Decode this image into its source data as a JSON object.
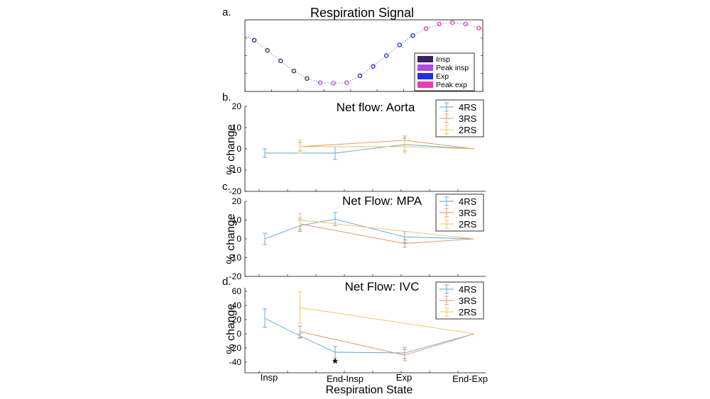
{
  "figure": {
    "x_axis_title": "Respiration State"
  },
  "x_categories": [
    "Insp",
    "End-Insp",
    "Exp",
    "End-Exp"
  ],
  "colors": {
    "rs4": "#5aa7d6",
    "rs3": "#e0936a",
    "rs2": "#f2c35a",
    "insp": "#3b1f5e",
    "peak_insp": "#b14be0",
    "exp": "#1f2fe0",
    "peak_exp": "#e83bb8",
    "signal_line": "#7f8fa6"
  },
  "chart_data": [
    {
      "id": "a",
      "panel_label": "a.",
      "type": "line",
      "title": "Respiration Signal",
      "xlabel": "",
      "ylabel": "",
      "xlim": [
        0,
        18
      ],
      "ylim": [
        -1.3,
        1.3
      ],
      "signal": {
        "x": [
          0.7,
          1.7,
          2.7,
          3.7,
          4.7,
          5.7,
          6.7,
          7.7,
          8.7,
          9.7,
          10.7,
          11.7,
          12.7,
          13.7,
          14.7,
          15.7,
          16.7,
          17.7
        ],
        "y": [
          0.56,
          0.19,
          -0.19,
          -0.56,
          -0.83,
          -0.98,
          -1.0,
          -0.98,
          -0.73,
          -0.39,
          0.0,
          0.39,
          0.73,
          0.98,
          1.15,
          1.2,
          1.15,
          1.0
        ],
        "marker_class": [
          "insp",
          "insp",
          "insp",
          "insp",
          "insp",
          "peak_insp",
          "peak_insp",
          "peak_insp",
          "exp",
          "exp",
          "exp",
          "exp",
          "exp",
          "peak_exp",
          "peak_exp",
          "peak_exp",
          "peak_exp",
          "peak_exp"
        ]
      },
      "legend": [
        {
          "label": "Insp",
          "key": "insp"
        },
        {
          "label": "Peak insp",
          "key": "peak_insp"
        },
        {
          "label": "Exp",
          "key": "exp"
        },
        {
          "label": "Peak exp",
          "key": "peak_exp"
        }
      ],
      "legend_position": "bottom-right"
    },
    {
      "id": "b",
      "panel_label": "b.",
      "type": "line",
      "title": "Net flow: Aorta",
      "xlabel": "",
      "ylabel": "% change",
      "ylim": [
        -20,
        20
      ],
      "yticks": [
        -20,
        -10,
        0,
        10,
        20
      ],
      "series": [
        {
          "name": "4RS",
          "key": "rs4",
          "x": [
            0,
            1,
            2,
            3
          ],
          "y": [
            -2,
            -2,
            2,
            0
          ],
          "err": [
            2,
            3,
            3,
            0
          ]
        },
        {
          "name": "3RS",
          "key": "rs3",
          "x": [
            0.5,
            2,
            3
          ],
          "y": [
            1,
            4,
            0
          ],
          "err": [
            2,
            2,
            0
          ]
        },
        {
          "name": "2RS",
          "key": "rs2",
          "x": [
            0.5,
            2,
            3
          ],
          "y": [
            1,
            1,
            0
          ],
          "err": [
            3,
            3,
            0
          ]
        }
      ],
      "legend_position": "top-right"
    },
    {
      "id": "c",
      "panel_label": "c.",
      "type": "line",
      "title": "Net Flow: MPA",
      "xlabel": "",
      "ylabel": "% change",
      "ylim": [
        -20,
        20
      ],
      "yticks": [
        -20,
        -10,
        0,
        10,
        20
      ],
      "series": [
        {
          "name": "4RS",
          "key": "rs4",
          "x": [
            0,
            0.5,
            1,
            2,
            3
          ],
          "y": [
            0,
            7,
            10.5,
            1,
            0
          ],
          "err": [
            3,
            3,
            3.5,
            3,
            0
          ]
        },
        {
          "name": "3RS",
          "key": "rs3",
          "x": [
            0.5,
            2,
            3
          ],
          "y": [
            8,
            -2.5,
            0
          ],
          "err": [
            3,
            2,
            0
          ]
        },
        {
          "name": "2RS",
          "key": "rs2",
          "x": [
            0.5,
            2,
            3
          ],
          "y": [
            10,
            4,
            0
          ],
          "err": [
            3.5,
            0,
            0
          ]
        }
      ],
      "legend_position": "top-right"
    },
    {
      "id": "d",
      "panel_label": "d.",
      "type": "line",
      "title": "Net Flow: IVC",
      "xlabel": "Respiration State",
      "ylabel": "% change",
      "ylim": [
        -55,
        65
      ],
      "yticks": [
        -40,
        -20,
        0,
        20,
        40,
        60
      ],
      "series": [
        {
          "name": "4RS",
          "key": "rs4",
          "x": [
            0,
            0.5,
            1,
            2,
            3
          ],
          "y": [
            22,
            -3,
            -26,
            -27,
            0
          ],
          "err": [
            13,
            3,
            8,
            8,
            0
          ]
        },
        {
          "name": "3RS",
          "key": "rs3",
          "x": [
            0.5,
            2,
            3
          ],
          "y": [
            3,
            -30,
            0
          ],
          "err": [
            8,
            8,
            0
          ]
        },
        {
          "name": "2RS",
          "key": "rs2",
          "x": [
            0.5,
            3
          ],
          "y": [
            37,
            0
          ],
          "err": [
            22,
            0
          ]
        }
      ],
      "annotation": {
        "text": "*",
        "x": 1,
        "y": -40
      },
      "legend_position": "top-right"
    }
  ]
}
